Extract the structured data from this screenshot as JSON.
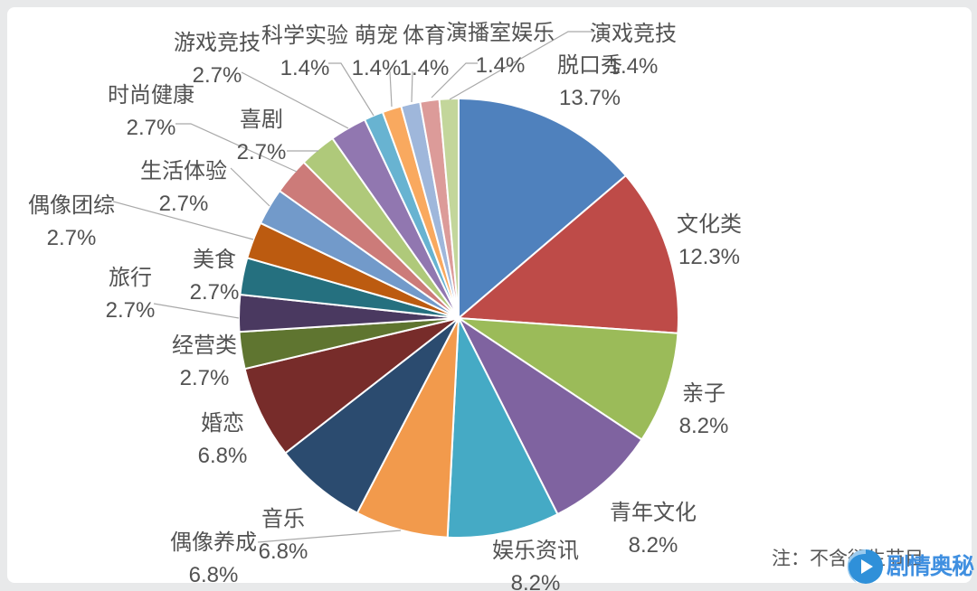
{
  "chart_data": {
    "type": "pie",
    "title": "",
    "direction": "clockwise",
    "start_angle_deg": 0,
    "label_style": "outside, category name above percent",
    "values_sum": 99.6,
    "normalize_to_full_circle": true,
    "categories": [
      "脱口秀",
      "文化类",
      "亲子",
      "青年文化",
      "娱乐资讯",
      "偶像养成",
      "音乐",
      "婚恋",
      "经营类",
      "旅行",
      "美食",
      "偶像团综",
      "生活体验",
      "时尚健康",
      "喜剧",
      "游戏竞技",
      "科学实验",
      "萌宠",
      "体育",
      "演播室娱乐",
      "演戏竞技"
    ],
    "values": [
      13.7,
      12.3,
      8.2,
      8.2,
      8.2,
      6.8,
      6.8,
      6.8,
      2.7,
      2.7,
      2.7,
      2.7,
      2.7,
      2.7,
      2.7,
      2.7,
      1.4,
      1.4,
      1.4,
      1.4,
      1.4
    ],
    "percent_labels": [
      "13.7%",
      "12.3%",
      "8.2%",
      "8.2%",
      "8.2%",
      "6.8%",
      "6.8%",
      "6.8%",
      "2.7%",
      "2.7%",
      "2.7%",
      "2.7%",
      "2.7%",
      "2.7%",
      "2.7%",
      "2.7%",
      "1.4%",
      "1.4%",
      "1.4%",
      "1.4%",
      "1.4%"
    ],
    "colors": [
      "#4F81BD",
      "#BE4B48",
      "#9BBB59",
      "#7F63A0",
      "#45AAC5",
      "#F29A4C",
      "#2B4B6F",
      "#772C2A",
      "#5F7530",
      "#4A3960",
      "#25707F",
      "#BC5B10",
      "#729ACA",
      "#CC7B79",
      "#AFC97A",
      "#9177B0",
      "#68B3D1",
      "#F9A95F",
      "#9FB7DB",
      "#DC9B99",
      "#C3D69B"
    ],
    "slice_border_color": "#FFFFFF",
    "leader_line_color": "#A9A9A9",
    "legend": "none"
  },
  "note": {
    "text": "注：不含衍生节目"
  },
  "watermark": {
    "text": "剧情奥秘",
    "color": "#3F8FE0",
    "logo": "play-button-swirl-icon"
  }
}
